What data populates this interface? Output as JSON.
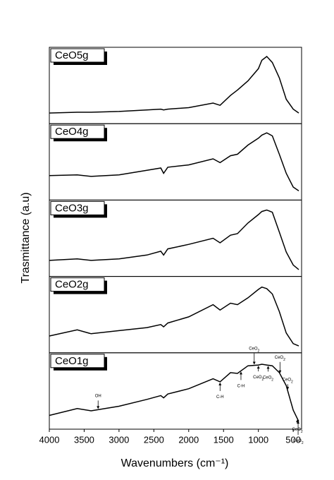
{
  "chart_data": {
    "type": "line",
    "ylabel": "Trasmittance (a.u)",
    "xlabel": "Wavenumbers (cm⁻¹)",
    "x": [
      4000,
      3600,
      3400,
      3000,
      2600,
      2400,
      2360,
      2300,
      2000,
      1650,
      1550,
      1400,
      1300,
      1150,
      1000,
      950,
      880,
      800,
      700,
      600,
      500,
      420
    ],
    "xlim": [
      4000,
      380
    ],
    "xticks": [
      4000,
      3500,
      3000,
      2500,
      2000,
      1500,
      1000,
      500
    ],
    "ylim": [
      0,
      100
    ],
    "color": "#000000",
    "series": [
      {
        "name": "CeO5g",
        "values": [
          14,
          15,
          15,
          16,
          18,
          19,
          18,
          19,
          21,
          27,
          24,
          37,
          44,
          56,
          72,
          83,
          88,
          80,
          60,
          32,
          19,
          14
        ]
      },
      {
        "name": "CeO4g",
        "values": [
          32,
          33,
          31,
          33,
          39,
          42,
          35,
          43,
          46,
          54,
          49,
          58,
          60,
          72,
          81,
          85,
          88,
          84,
          60,
          35,
          17,
          12
        ]
      },
      {
        "name": "CeO3g",
        "values": [
          21,
          23,
          21,
          23,
          28,
          33,
          28,
          36,
          42,
          50,
          44,
          54,
          56,
          70,
          81,
          85,
          87,
          84,
          58,
          32,
          15,
          9
        ]
      },
      {
        "name": "CeO2g",
        "values": [
          22,
          30,
          25,
          29,
          33,
          37,
          34,
          39,
          47,
          63,
          56,
          65,
          63,
          72,
          83,
          86,
          84,
          77,
          54,
          26,
          12,
          9
        ]
      },
      {
        "name": "CeO1g",
        "values": [
          18,
          27,
          24,
          30,
          39,
          44,
          41,
          46,
          53,
          66,
          62,
          74,
          73,
          83,
          84,
          85,
          84,
          83,
          74,
          57,
          25,
          10
        ],
        "annotations": [
          {
            "text": "OH",
            "x": 3300
          },
          {
            "text": "C-H",
            "x": 1550
          },
          {
            "text": "C-H",
            "x": 1250
          },
          {
            "text": "CeO",
            "subscript": "2",
            "x": 1060
          },
          {
            "text": "CeO",
            "subscript": "2",
            "x": 1000
          },
          {
            "text": "CeO",
            "subscript": "2",
            "x": 860
          },
          {
            "text": "CeO",
            "subscript": "2",
            "x": 690
          },
          {
            "text": "CeO",
            "subscript": "2",
            "x": 580
          },
          {
            "text": "CeO",
            "subscript": "2",
            "x": 440
          },
          {
            "text": "CeO",
            "subscript": "2",
            "x": 430
          }
        ]
      }
    ]
  }
}
